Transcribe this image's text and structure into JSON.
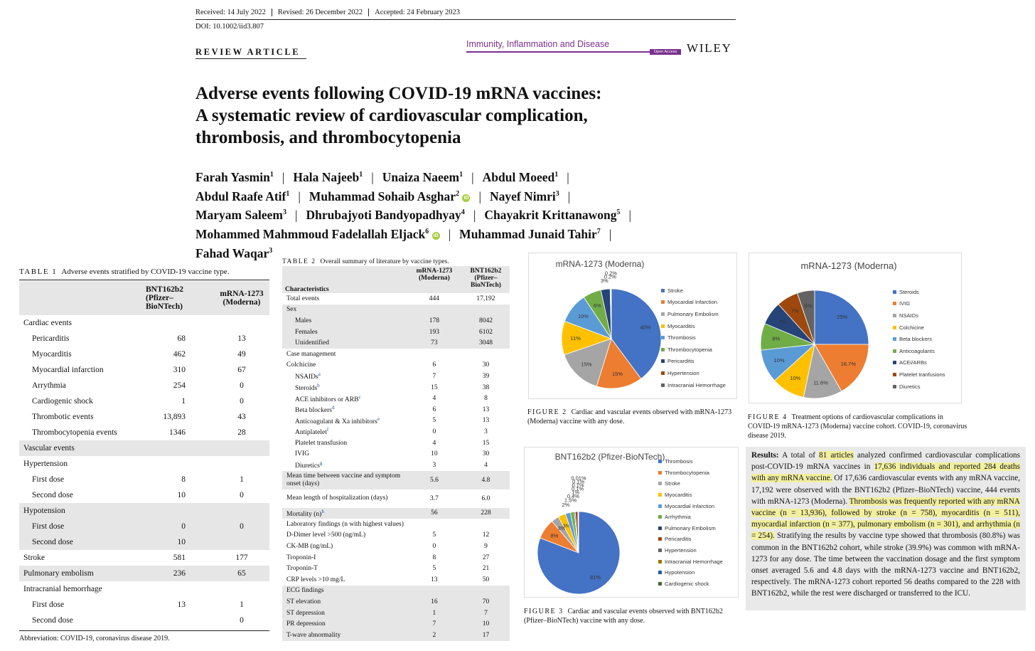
{
  "header": {
    "received": "Received: 14 July 2022",
    "revised": "Revised: 26 December 2022",
    "accepted": "Accepted: 24 February 2023",
    "doi": "DOI: 10.1002/iid3.807",
    "article_type": "REVIEW ARTICLE",
    "journal": "Immunity, Inflammation and Disease",
    "open_access": "Open Access",
    "publisher": "WILEY"
  },
  "title": {
    "line1": "Adverse events following COVID-19 mRNA vaccines:",
    "line2": "A systematic review of cardiovascular complication,",
    "line3": "thrombosis, and thrombocytopenia"
  },
  "authors": [
    {
      "name": "Farah Yasmin",
      "sup": "1"
    },
    {
      "name": "Hala Najeeb",
      "sup": "1"
    },
    {
      "name": "Unaiza Naeem",
      "sup": "1"
    },
    {
      "name": "Abdul Moeed",
      "sup": "1"
    },
    {
      "name": "Abdul Raafe Atif",
      "sup": "1"
    },
    {
      "name": "Muhammad Sohaib Asghar",
      "sup": "2"
    },
    {
      "name": "Nayef Nimri",
      "sup": "3"
    },
    {
      "name": "Maryam Saleem",
      "sup": "3"
    },
    {
      "name": "Dhrubajyoti Bandyopadhyay",
      "sup": "4"
    },
    {
      "name": "Chayakrit Krittanawong",
      "sup": "5"
    },
    {
      "name": "Mohammed Mahmmoud Fadelallah Eljack",
      "sup": "6"
    },
    {
      "name": "Muhammad Junaid Tahir",
      "sup": "7"
    },
    {
      "name": "Fahad Waqar",
      "sup": "3"
    }
  ],
  "orcid_label": "iD",
  "table1": {
    "label": "TABLE 1",
    "caption": "Adverse events stratified by COVID-19 vaccine type.",
    "col1": "BNT162b2 (Pfizer–BioNTech)",
    "col2": "mRNA-1273 (Moderna)",
    "rows": [
      {
        "label": "Cardiac events",
        "a": "",
        "b": "",
        "indent": 0,
        "shade": false
      },
      {
        "label": "Pericarditis",
        "a": "68",
        "b": "13",
        "indent": 1,
        "shade": false
      },
      {
        "label": "Myocarditis",
        "a": "462",
        "b": "49",
        "indent": 1,
        "shade": false
      },
      {
        "label": "Myocardial infarction",
        "a": "310",
        "b": "67",
        "indent": 1,
        "shade": false
      },
      {
        "label": "Arrythmia",
        "a": "254",
        "b": "0",
        "indent": 1,
        "shade": false
      },
      {
        "label": "Cardiogenic shock",
        "a": "1",
        "b": "0",
        "indent": 1,
        "shade": false
      },
      {
        "label": "Thrombotic events",
        "a": "13,893",
        "b": "43",
        "indent": 1,
        "shade": false
      },
      {
        "label": "Thrombocytopenia events",
        "a": "1346",
        "b": "28",
        "indent": 1,
        "shade": false
      },
      {
        "label": "Vascular events",
        "a": "",
        "b": "",
        "indent": 0,
        "shade": true
      },
      {
        "label": "Hypertension",
        "a": "",
        "b": "",
        "indent": 0,
        "shade": false
      },
      {
        "label": "First dose",
        "a": "8",
        "b": "1",
        "indent": 1,
        "shade": false
      },
      {
        "label": "Second dose",
        "a": "10",
        "b": "0",
        "indent": 1,
        "shade": false
      },
      {
        "label": "Hypotension",
        "a": "",
        "b": "",
        "indent": 0,
        "shade": true
      },
      {
        "label": "First dose",
        "a": "0",
        "b": "0",
        "indent": 1,
        "shade": true
      },
      {
        "label": "Second dose",
        "a": "10",
        "b": "",
        "indent": 1,
        "shade": true
      },
      {
        "label": "Stroke",
        "a": "581",
        "b": "177",
        "indent": 0,
        "shade": false
      },
      {
        "label": "Pulmonary embolism",
        "a": "236",
        "b": "65",
        "indent": 0,
        "shade": true
      },
      {
        "label": "Intracranial hemorrhage",
        "a": "",
        "b": "",
        "indent": 0,
        "shade": false
      },
      {
        "label": "First dose",
        "a": "13",
        "b": "1",
        "indent": 1,
        "shade": false
      },
      {
        "label": "Second dose",
        "a": "",
        "b": "0",
        "indent": 1,
        "shade": false
      }
    ],
    "footnote": "Abbreviation: COVID-19, coronavirus disease 2019."
  },
  "table2": {
    "label": "TABLE 2",
    "caption": "Overall summary of literature by vaccine types.",
    "head_label": "Characteristics",
    "col1": "mRNA-1273 (Moderna)",
    "col2": "BNT162b2 (Pfizer–BioNTech)",
    "rows": [
      {
        "label": "Total events",
        "a": "444",
        "b": "17,192",
        "indent": 0,
        "shade": false
      },
      {
        "label": "Sex",
        "a": "",
        "b": "",
        "indent": 0,
        "shade": true
      },
      {
        "label": "Males",
        "a": "178",
        "b": "8042",
        "indent": 1,
        "shade": true
      },
      {
        "label": "Females",
        "a": "193",
        "b": "6102",
        "indent": 1,
        "shade": true
      },
      {
        "label": "Unidentified",
        "a": "73",
        "b": "3048",
        "indent": 1,
        "shade": true
      },
      {
        "label": "Case management",
        "a": "",
        "b": "",
        "indent": 0,
        "shade": false
      },
      {
        "label": "Colchicine",
        "a": "6",
        "b": "30",
        "indent": 0,
        "shade": false
      },
      {
        "label": "NSAIDs",
        "sup": "a",
        "a": "7",
        "b": "39",
        "indent": 1,
        "shade": false
      },
      {
        "label": "Steroids",
        "sup": "b",
        "a": "15",
        "b": "38",
        "indent": 1,
        "shade": false
      },
      {
        "label": "ACE inhibitors or ARB",
        "sup": "c",
        "a": "4",
        "b": "8",
        "indent": 1,
        "shade": false
      },
      {
        "label": "Beta blockers",
        "sup": "d",
        "a": "6",
        "b": "13",
        "indent": 1,
        "shade": false
      },
      {
        "label": "Anticoagulant & Xa inhibitors",
        "sup": "e",
        "a": "5",
        "b": "13",
        "indent": 1,
        "shade": false
      },
      {
        "label": "Antiplatelet",
        "sup": "f",
        "a": "0",
        "b": "3",
        "indent": 1,
        "shade": false
      },
      {
        "label": "Platelet transfusion",
        "a": "4",
        "b": "15",
        "indent": 1,
        "shade": false
      },
      {
        "label": "IVIG",
        "a": "10",
        "b": "30",
        "indent": 1,
        "shade": false
      },
      {
        "label": "Diuretics",
        "sup": "g",
        "a": "3",
        "b": "4",
        "indent": 1,
        "shade": false
      },
      {
        "label": "Mean time between vaccine and symptom onset (days)",
        "a": "5.6",
        "b": "4.8",
        "indent": 0,
        "shade": true,
        "tall": true
      },
      {
        "label": "Mean length of hospitalization (days)",
        "a": "3.7",
        "b": "6.0",
        "indent": 0,
        "shade": false,
        "tall": true
      },
      {
        "label": "Mortality (n)",
        "sup": "h",
        "a": "56",
        "b": "228",
        "indent": 0,
        "shade": true
      },
      {
        "label": "Laboratory findings (n with highest values)",
        "a": "",
        "b": "",
        "indent": 0,
        "shade": false
      },
      {
        "label": "D-Dimer level >500 (ng/mL)",
        "a": "5",
        "b": "12",
        "indent": 0,
        "shade": false
      },
      {
        "label": "CK-MB (ng/mL)",
        "a": "0",
        "b": "9",
        "indent": 0,
        "shade": false
      },
      {
        "label": "Troponin-I",
        "a": "8",
        "b": "27",
        "indent": 0,
        "shade": false
      },
      {
        "label": "Troponin-T",
        "a": "5",
        "b": "21",
        "indent": 0,
        "shade": false
      },
      {
        "label": "CRP levels >10 mg/L",
        "a": "13",
        "b": "50",
        "indent": 0,
        "shade": false
      },
      {
        "label": "ECG findings",
        "a": "",
        "b": "",
        "indent": 0,
        "shade": true
      },
      {
        "label": "ST elevation",
        "a": "16",
        "b": "70",
        "indent": 0,
        "shade": true
      },
      {
        "label": "ST depression",
        "a": "1",
        "b": "7",
        "indent": 0,
        "shade": true
      },
      {
        "label": "PR depression",
        "a": "7",
        "b": "10",
        "indent": 0,
        "shade": true
      },
      {
        "label": "T-wave abnormality",
        "a": "2",
        "b": "17",
        "indent": 0,
        "shade": true
      }
    ]
  },
  "figure2": {
    "label": "FIGURE 2",
    "caption": "Cardiac and vascular events observed with mRNA-1273 (Moderna) vaccine with any dose."
  },
  "figure3": {
    "label": "FIGURE 3",
    "caption": "Cardiac and vascular events observed with BNT162b2 (Pfizer–BioNTech) vaccine with any dose."
  },
  "figure4": {
    "label": "FIGURE 4",
    "caption": "Treatment options of cardiovascular complications in COVID-19 mRNA-1273 (Moderna) vaccine cohort. COVID-19, coronavirus disease 2019."
  },
  "results": {
    "lead": "Results:",
    "t1": "A total of ",
    "h1": "81 articles",
    "t2": " analyzed confirmed cardiovascular complications post-COVID-19 mRNA vaccines in ",
    "h2": "17,636 individuals and reported 284 deaths with any mRNA vaccine.",
    "t3": " Of 17,636 cardiovascular events with any mRNA vaccine, 17,192 were observed with the BNT162b2 (Pfizer–BioNTech) vaccine, 444 events with mRNA-1273 (Moderna). ",
    "h3": "Thrombosis was frequently reported with any mRNA vaccine (n = 13,936), followed by stroke (n = 758), myocarditis (n = 511), myocardial infarction (n = 377), pulmonary embolism (n = 301), and arrhythmia (n = 254).",
    "t4": " Stratifying the results by vaccine type showed that thrombosis (80.8%) was common in the BNT162b2 cohort, while stroke (39.9%) was common with mRNA-1273 for any dose. The time between the vaccination dosage and the first symptom onset averaged 5.6 and 4.8 days with the mRNA-1273 vaccine and BNT162b2, respectively. The mRNA-1273 cohort reported 56 deaths compared to the 228 with BNT162b2, while the rest were discharged or transferred to the ICU."
  },
  "chart_data": [
    {
      "type": "pie",
      "title": "mRNA-1273 (Moderna)",
      "categories": [
        "Stroke",
        "Myocardial Infarction",
        "Pulmonary Embolism",
        "Myocarditis",
        "Thrombosis",
        "Thrombocytopenia",
        "Pericarditis",
        "Hypertension",
        "Intracranial Hemorrhage"
      ],
      "values": [
        40,
        15,
        15,
        11,
        10,
        6,
        3,
        0.2,
        0.2
      ],
      "labels": [
        "40%",
        "15%",
        "15%",
        "11%",
        "10%",
        "6%",
        "3%",
        "0.2%",
        "0.2%"
      ],
      "colors": [
        "#4472c4",
        "#ed7d31",
        "#a5a5a5",
        "#ffc000",
        "#5b9bd5",
        "#70ad47",
        "#264478",
        "#9e480e",
        "#636363"
      ],
      "legend": "right"
    },
    {
      "type": "pie",
      "title": "BNT162b2 (Pfizer-BioNTech)",
      "categories": [
        "Thrombosis",
        "Thrombocytopenia",
        "Stroke",
        "Myocarditis",
        "Myocardial Infarction",
        "Arrhythmia",
        "Pulmonary Embolism",
        "Pericarditis",
        "Hypertension",
        "Intracranial Hemorrhage",
        "Hypotension",
        "Cardiogenic shock"
      ],
      "values": [
        81,
        8,
        3,
        3,
        2,
        1.5,
        0.4,
        1,
        0.1,
        0.1,
        0.1,
        0.01
      ],
      "labels": [
        "81%",
        "8%",
        "3%",
        "3%",
        "2%",
        "1.5%",
        "0.4%",
        "1%",
        "0.1%",
        "0.1%",
        "0.1%",
        "0.01%"
      ],
      "colors": [
        "#4472c4",
        "#ed7d31",
        "#a5a5a5",
        "#ffc000",
        "#5b9bd5",
        "#70ad47",
        "#264478",
        "#9e480e",
        "#636363",
        "#997300",
        "#255e91",
        "#43682b"
      ],
      "legend": "right"
    },
    {
      "type": "pie",
      "title": "mRNA-1273 (Moderna)",
      "categories": [
        "Steroids",
        "IVIG",
        "NSAIDs",
        "Colchicine",
        "Beta blockers",
        "Anticoagulants",
        "ACEi/ARBs",
        "Platelet tranfusions",
        "Diuretics"
      ],
      "values": [
        25,
        16.7,
        11.6,
        10,
        10,
        8,
        7,
        6.5,
        5.2
      ],
      "labels": [
        "25%",
        "16.7%",
        "11.6%",
        "10%",
        "10%",
        "8%",
        "7%",
        "7%",
        "5%"
      ],
      "colors": [
        "#4472c4",
        "#ed7d31",
        "#a5a5a5",
        "#ffc000",
        "#5b9bd5",
        "#70ad47",
        "#264478",
        "#9e480e",
        "#636363"
      ],
      "legend": "right"
    }
  ]
}
